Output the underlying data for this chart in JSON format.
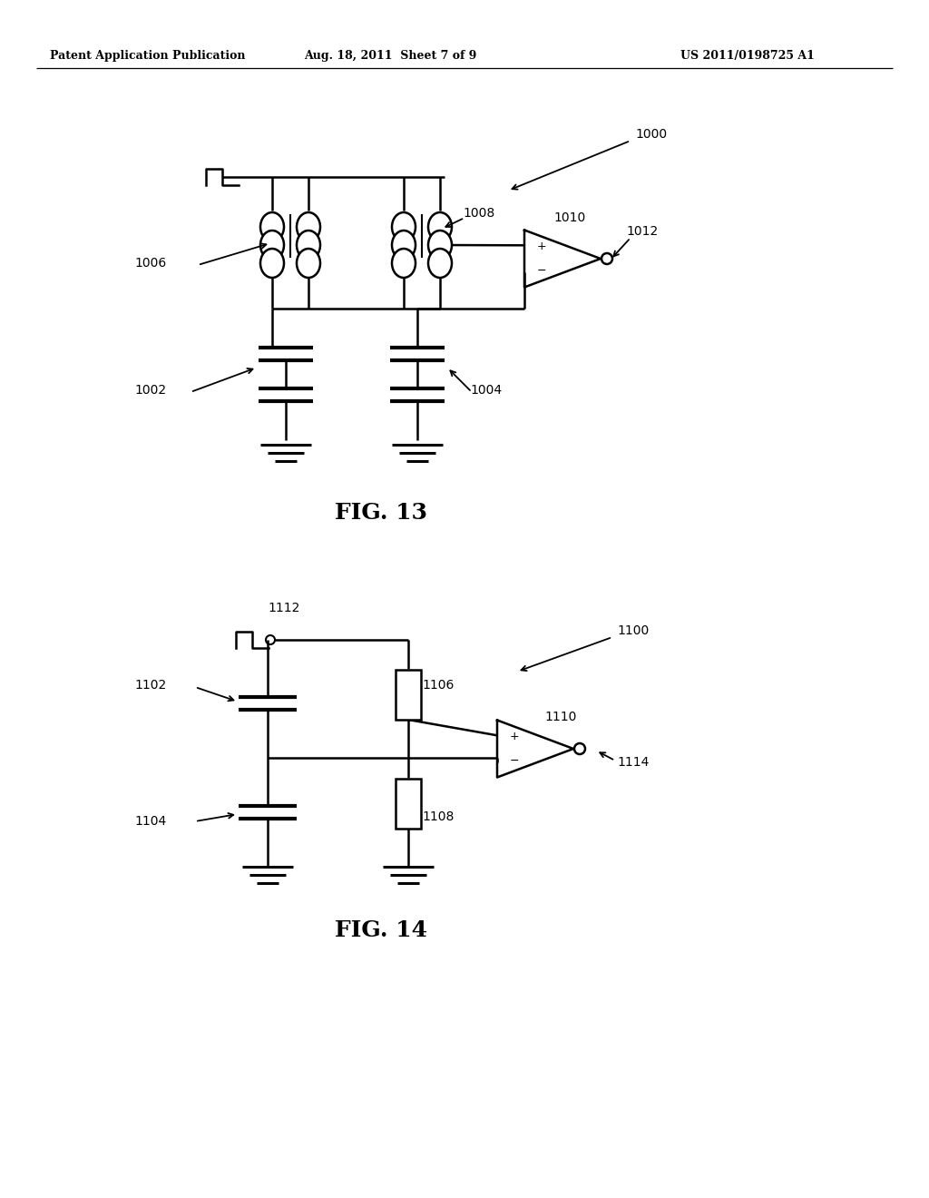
{
  "background_color": "#ffffff",
  "header_left": "Patent Application Publication",
  "header_center": "Aug. 18, 2011  Sheet 7 of 9",
  "header_right": "US 2011/0198725 A1",
  "fig13_label": "FIG. 13",
  "fig14_label": "FIG. 14"
}
